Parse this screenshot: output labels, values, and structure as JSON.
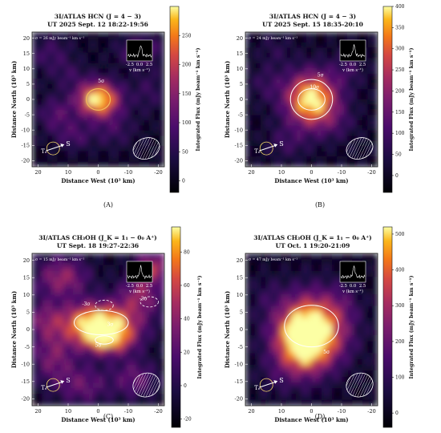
{
  "chart_data": [
    {
      "type": "heatmap",
      "panel_label": "(A)",
      "title_line1": "3I/ATLAS HCN (J = 4 − 3)",
      "title_line2": "UT 2025 Sept. 12 18:22-19:56",
      "xlabel": "Distance West (10³ km)",
      "ylabel": "Distance North (10³ km)",
      "colorbar_label": "Integrated Flux (mJy beam⁻¹ km s⁻¹)",
      "xlim": [
        22,
        -22
      ],
      "ylim": [
        -22,
        22
      ],
      "xticks": [
        -20,
        -10,
        0,
        10,
        20
      ],
      "yticks": [
        -20,
        -15,
        -10,
        -5,
        0,
        5,
        10,
        15,
        20
      ],
      "cbar_range": [
        -20,
        300
      ],
      "cbar_ticks": [
        0,
        50,
        100,
        150,
        200,
        250
      ],
      "sigma_text": "σ = 26 mJy beam⁻¹ km s⁻¹",
      "contour_labels": [
        "5σ"
      ],
      "peak": {
        "x": 0,
        "y": 0,
        "value": 285
      },
      "inset": {
        "xlabel": "v (km s⁻¹)",
        "ticks": [
          "-2.5",
          "0.0",
          "2.5"
        ]
      },
      "arrows": {
        "sun": "S",
        "tail": "Tₑ"
      }
    },
    {
      "type": "heatmap",
      "panel_label": "(B)",
      "title_line1": "3I/ATLAS HCN (J = 4 − 3)",
      "title_line2": "UT 2025 Sept. 15 18:35-20:10",
      "xlabel": "Distance West (10³ km)",
      "ylabel": "Distance North (10³ km)",
      "colorbar_label": "Integrated Flux (mJy beam⁻¹ km s⁻¹)",
      "xlim": [
        22,
        -22
      ],
      "ylim": [
        -22,
        22
      ],
      "xticks": [
        -20,
        -10,
        0,
        10,
        20
      ],
      "yticks": [
        -20,
        -15,
        -10,
        -5,
        0,
        5,
        10,
        15,
        20
      ],
      "cbar_range": [
        -40,
        400
      ],
      "cbar_ticks": [
        0,
        50,
        100,
        150,
        200,
        250,
        300,
        350,
        400
      ],
      "sigma_text": "σ = 24 mJy beam⁻¹ km s⁻¹",
      "contour_labels": [
        "5σ",
        "10σ"
      ],
      "peak": {
        "x": 0,
        "y": 0,
        "value": 390
      },
      "inset": {
        "xlabel": "v (km s⁻¹)",
        "ticks": [
          "-2.5",
          "0.0",
          "2.5"
        ]
      },
      "arrows": {
        "sun": "S",
        "tail": "Tₑ"
      }
    },
    {
      "type": "heatmap",
      "panel_label": "(C)",
      "title_line1": "3I/ATLAS CH₃OH (J_K = 1₁ − 0₀ A⁺)",
      "title_line2": "UT Sept. 18 19:27-22:36",
      "xlabel": "Distance West (10³ km)",
      "ylabel": "Distance North (10³ km)",
      "colorbar_label": "Integrated Flux (mJy beam⁻¹ km s⁻¹)",
      "xlim": [
        22,
        -22
      ],
      "ylim": [
        -22,
        22
      ],
      "xticks": [
        -20,
        -10,
        0,
        10,
        20
      ],
      "yticks": [
        -20,
        -15,
        -10,
        -5,
        0,
        5,
        10,
        15,
        20
      ],
      "cbar_range": [
        -25,
        95
      ],
      "cbar_ticks": [
        -20,
        0,
        20,
        40,
        60,
        80
      ],
      "sigma_text": "σ = 15 mJy beam⁻¹ km s⁻¹",
      "contour_labels": [
        "-3σ",
        "-3σ",
        "3σ",
        "5σ"
      ],
      "peak": {
        "x": 0,
        "y": 0,
        "value": 90
      },
      "inset": {
        "xlabel": "v (km s⁻¹)",
        "ticks": [
          "-2.5",
          "0.0",
          "2.5"
        ]
      },
      "arrows": {
        "sun": "S",
        "tail": "Tₑ"
      }
    },
    {
      "type": "heatmap",
      "panel_label": "(D)",
      "title_line1": "3I/ATLAS CH₃OH (J_K = 1₁ − 0₀ A⁺)",
      "title_line2": "UT Oct. 1 19:20-21:09",
      "xlabel": "Distance West (10³ km)",
      "ylabel": "Distance North (10³ km)",
      "colorbar_label": "Integrated Flux (mJy beam⁻¹ km s⁻¹)",
      "xlim": [
        22,
        -22
      ],
      "ylim": [
        -22,
        22
      ],
      "xticks": [
        -20,
        -10,
        0,
        10,
        20
      ],
      "yticks": [
        -20,
        -15,
        -10,
        -5,
        0,
        5,
        10,
        15,
        20
      ],
      "cbar_range": [
        -40,
        520
      ],
      "cbar_ticks": [
        0,
        100,
        200,
        300,
        400,
        500
      ],
      "sigma_text": "σ = 47 mJy beam⁻¹ km s⁻¹",
      "contour_labels": [
        "5σ"
      ],
      "peak": {
        "x": 0,
        "y": 0,
        "value": 500
      },
      "inset": {
        "xlabel": "v (km s⁻¹)",
        "ticks": [
          "-2.5",
          "0.0",
          "2.5"
        ]
      },
      "arrows": {
        "sun": "S",
        "tail": "Tₑ"
      }
    }
  ]
}
